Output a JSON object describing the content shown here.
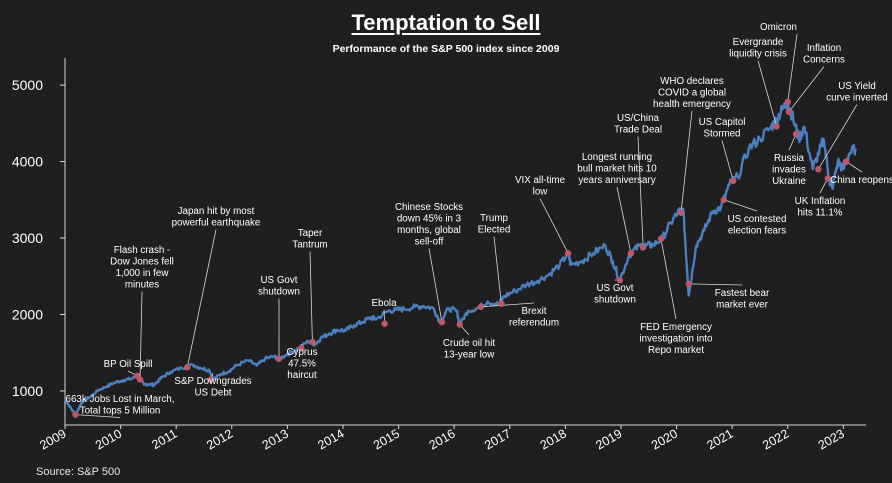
{
  "title": "Temptation to Sell",
  "subtitle": "Performance of the S&P 500  index since 2009",
  "source": "Source: S&P 500",
  "colors": {
    "background": "#1f1f1f",
    "line": "#4a7fc1",
    "marker": "#c0566a",
    "text": "#ffffff"
  },
  "chart_data": {
    "type": "line",
    "title": "Temptation to Sell",
    "subtitle": "Performance of the S&P 500  index since 2009",
    "xlabel": "",
    "ylabel": "",
    "xlim": [
      2009.0,
      2023.3
    ],
    "ylim": [
      620,
      5250
    ],
    "x_ticks": [
      2009,
      2010,
      2011,
      2012,
      2013,
      2014,
      2015,
      2016,
      2017,
      2018,
      2019,
      2020,
      2021,
      2022,
      2023
    ],
    "x_tick_labels": [
      "2009",
      "2010",
      "2011",
      "2012",
      "2013",
      "2014",
      "2015",
      "2016",
      "2017",
      "2018",
      "2019",
      "2020",
      "2021",
      "2022",
      "2023"
    ],
    "y_ticks": [
      1000,
      2000,
      3000,
      4000,
      5000
    ],
    "y_tick_labels": [
      "1000",
      "2000",
      "3000",
      "4000",
      "5000"
    ],
    "grid": false,
    "series": [
      {
        "name": "",
        "x": [
          2009.0,
          2009.08,
          2009.19,
          2009.3,
          2009.45,
          2009.6,
          2009.75,
          2009.9,
          2010.05,
          2010.2,
          2010.3,
          2010.42,
          2010.5,
          2010.6,
          2010.75,
          2010.9,
          2011.1,
          2011.3,
          2011.45,
          2011.6,
          2011.67,
          2011.8,
          2011.95,
          2012.1,
          2012.3,
          2012.45,
          2012.6,
          2012.75,
          2012.85,
          2013.0,
          2013.2,
          2013.38,
          2013.5,
          2013.6,
          2013.75,
          2013.9,
          2014.05,
          2014.2,
          2014.35,
          2014.5,
          2014.6,
          2014.8,
          2014.95,
          2015.1,
          2015.3,
          2015.45,
          2015.63,
          2015.75,
          2015.9,
          2016.05,
          2016.1,
          2016.25,
          2016.45,
          2016.6,
          2016.8,
          2016.9,
          2017.1,
          2017.3,
          2017.5,
          2017.7,
          2017.9,
          2018.05,
          2018.1,
          2018.3,
          2018.5,
          2018.72,
          2018.85,
          2018.98,
          2019.15,
          2019.33,
          2019.45,
          2019.58,
          2019.75,
          2019.9,
          2020.02,
          2020.12,
          2020.18,
          2020.22,
          2020.35,
          2020.5,
          2020.65,
          2020.8,
          2020.95,
          2021.1,
          2021.3,
          2021.5,
          2021.7,
          2021.8,
          2021.9,
          2022.0,
          2022.1,
          2022.2,
          2022.3,
          2022.45,
          2022.6,
          2022.65,
          2022.75,
          2022.8,
          2022.9,
          2023.0,
          2023.1,
          2023.22
        ],
        "y": [
          900,
          800,
          690,
          850,
          920,
          1010,
          1060,
          1110,
          1140,
          1160,
          1200,
          1080,
          1090,
          1080,
          1180,
          1250,
          1300,
          1340,
          1300,
          1270,
          1150,
          1220,
          1260,
          1340,
          1400,
          1330,
          1420,
          1450,
          1420,
          1480,
          1560,
          1650,
          1610,
          1690,
          1750,
          1800,
          1790,
          1860,
          1900,
          1960,
          1940,
          2040,
          2060,
          2070,
          2100,
          2110,
          2080,
          1900,
          2080,
          2040,
          1870,
          2050,
          2090,
          2170,
          2130,
          2240,
          2310,
          2390,
          2440,
          2520,
          2650,
          2800,
          2650,
          2700,
          2800,
          2900,
          2700,
          2450,
          2780,
          2900,
          2900,
          2910,
          3000,
          3200,
          3330,
          3380,
          2700,
          2250,
          2900,
          3100,
          3350,
          3400,
          3700,
          3800,
          4170,
          4300,
          4450,
          4550,
          4680,
          4780,
          4550,
          4300,
          4450,
          3900,
          4200,
          4280,
          3750,
          3650,
          4000,
          3900,
          4100,
          4170
        ]
      }
    ],
    "annotations": [
      {
        "x": 2009.19,
        "y": 690,
        "label": [
          "663k Jobs Lost in March,",
          "Total tops 5 Million"
        ]
      },
      {
        "x": 2010.3,
        "y": 1200,
        "label": [
          "BP Oil Spill"
        ]
      },
      {
        "x": 2010.35,
        "y": 1150,
        "label": [
          "Flash crash -",
          "Dow Jones fell",
          "1,000 in few",
          "minutes"
        ]
      },
      {
        "x": 2011.2,
        "y": 1310,
        "label": [
          "Japan hit by most",
          "powerful earthquake"
        ]
      },
      {
        "x": 2011.62,
        "y": 1150,
        "label": [
          "S&P Downgrades",
          "US Debt"
        ]
      },
      {
        "x": 2012.85,
        "y": 1420,
        "label": [
          "US Govt",
          "shutdown"
        ]
      },
      {
        "x": 2013.25,
        "y": 1560,
        "label": [
          "Cyprus",
          "47.5%",
          "haircut"
        ]
      },
      {
        "x": 2013.45,
        "y": 1640,
        "label": [
          "Taper",
          "Tantrum"
        ]
      },
      {
        "x": 2014.75,
        "y": 1880,
        "label": [
          "Ebola"
        ]
      },
      {
        "x": 2015.78,
        "y": 1900,
        "label": [
          "Chinese Stocks",
          "down 45% in 3",
          "months, global",
          "sell-off"
        ]
      },
      {
        "x": 2016.1,
        "y": 1870,
        "label": [
          "Crude oil hit",
          "13-year low"
        ]
      },
      {
        "x": 2016.48,
        "y": 2100,
        "label": [
          "Brexit",
          "referendum"
        ]
      },
      {
        "x": 2016.85,
        "y": 2140,
        "label": [
          "Trump",
          "Elected"
        ]
      },
      {
        "x": 2018.05,
        "y": 2800,
        "label": [
          "VIX all-time",
          "low"
        ]
      },
      {
        "x": 2018.98,
        "y": 2450,
        "label": [
          "US Govt",
          "shutdown"
        ]
      },
      {
        "x": 2019.18,
        "y": 2800,
        "label": [
          "Longest running",
          "bull market hits 10",
          "years anniversary"
        ]
      },
      {
        "x": 2019.4,
        "y": 2880,
        "label": [
          "US/China",
          "Trade Deal"
        ]
      },
      {
        "x": 2019.72,
        "y": 2990,
        "label": [
          "FED Emergency",
          "investigation into",
          "Repo market"
        ]
      },
      {
        "x": 2020.08,
        "y": 3330,
        "label": [
          "WHO declares",
          "COVID a global",
          "health emergency"
        ]
      },
      {
        "x": 2020.22,
        "y": 2400,
        "label": [
          "Fastest bear",
          "market ever"
        ]
      },
      {
        "x": 2020.85,
        "y": 3500,
        "label": [
          "US contested",
          "election fears"
        ]
      },
      {
        "x": 2021.02,
        "y": 3750,
        "label": [
          "US Capitol",
          "Stormed"
        ]
      },
      {
        "x": 2021.8,
        "y": 4460,
        "label": [
          "Evergrande",
          "liquidity crisis"
        ]
      },
      {
        "x": 2022.0,
        "y": 4780,
        "label": [
          "Omicron"
        ]
      },
      {
        "x": 2022.02,
        "y": 4650,
        "label": [
          "Inflation",
          "Concerns"
        ]
      },
      {
        "x": 2022.15,
        "y": 4360,
        "label": [
          "Russia",
          "invades",
          "Ukraine"
        ]
      },
      {
        "x": 2022.55,
        "y": 3900,
        "label": [
          "US Yield",
          "curve inverted"
        ]
      },
      {
        "x": 2022.72,
        "y": 3780,
        "label": [
          "UK Inflation",
          "hits 11.1%"
        ]
      },
      {
        "x": 2023.05,
        "y": 4000,
        "label": [
          "China reopens"
        ]
      }
    ]
  }
}
